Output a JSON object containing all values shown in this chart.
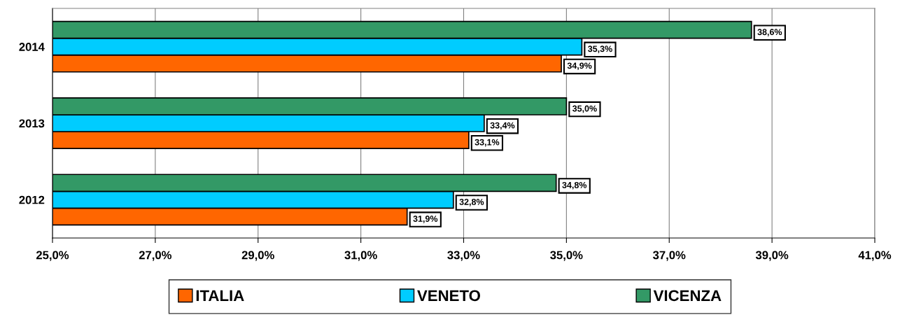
{
  "chart_data": {
    "type": "bar",
    "orientation": "horizontal",
    "categories": [
      "2014",
      "2013",
      "2012"
    ],
    "series": [
      {
        "name": "ITALIA",
        "color": "#ff6600",
        "values": [
          34.9,
          33.1,
          31.9
        ],
        "value_labels": [
          "34,9%",
          "33,1%",
          "31,9%"
        ]
      },
      {
        "name": "VENETO",
        "color": "#00ccff",
        "values": [
          35.3,
          33.4,
          32.8
        ],
        "value_labels": [
          "35,3%",
          "33,4%",
          "32,8%"
        ]
      },
      {
        "name": "VICENZA",
        "color": "#339966",
        "values": [
          38.6,
          35.0,
          34.8
        ],
        "value_labels": [
          "38,6%",
          "35,0%",
          "34,8%"
        ]
      }
    ],
    "xlim": [
      25,
      41
    ],
    "xticks": [
      {
        "value": 25,
        "label": "25,0%"
      },
      {
        "value": 27,
        "label": "27,0%"
      },
      {
        "value": 29,
        "label": "29,0%"
      },
      {
        "value": 31,
        "label": "31,0%"
      },
      {
        "value": 33,
        "label": "33,0%"
      },
      {
        "value": 35,
        "label": "35,0%"
      },
      {
        "value": 37,
        "label": "37,0%"
      },
      {
        "value": 39,
        "label": "39,0%"
      },
      {
        "value": 41,
        "label": "41,0%"
      }
    ],
    "grid": "x",
    "legend": "bottom"
  }
}
